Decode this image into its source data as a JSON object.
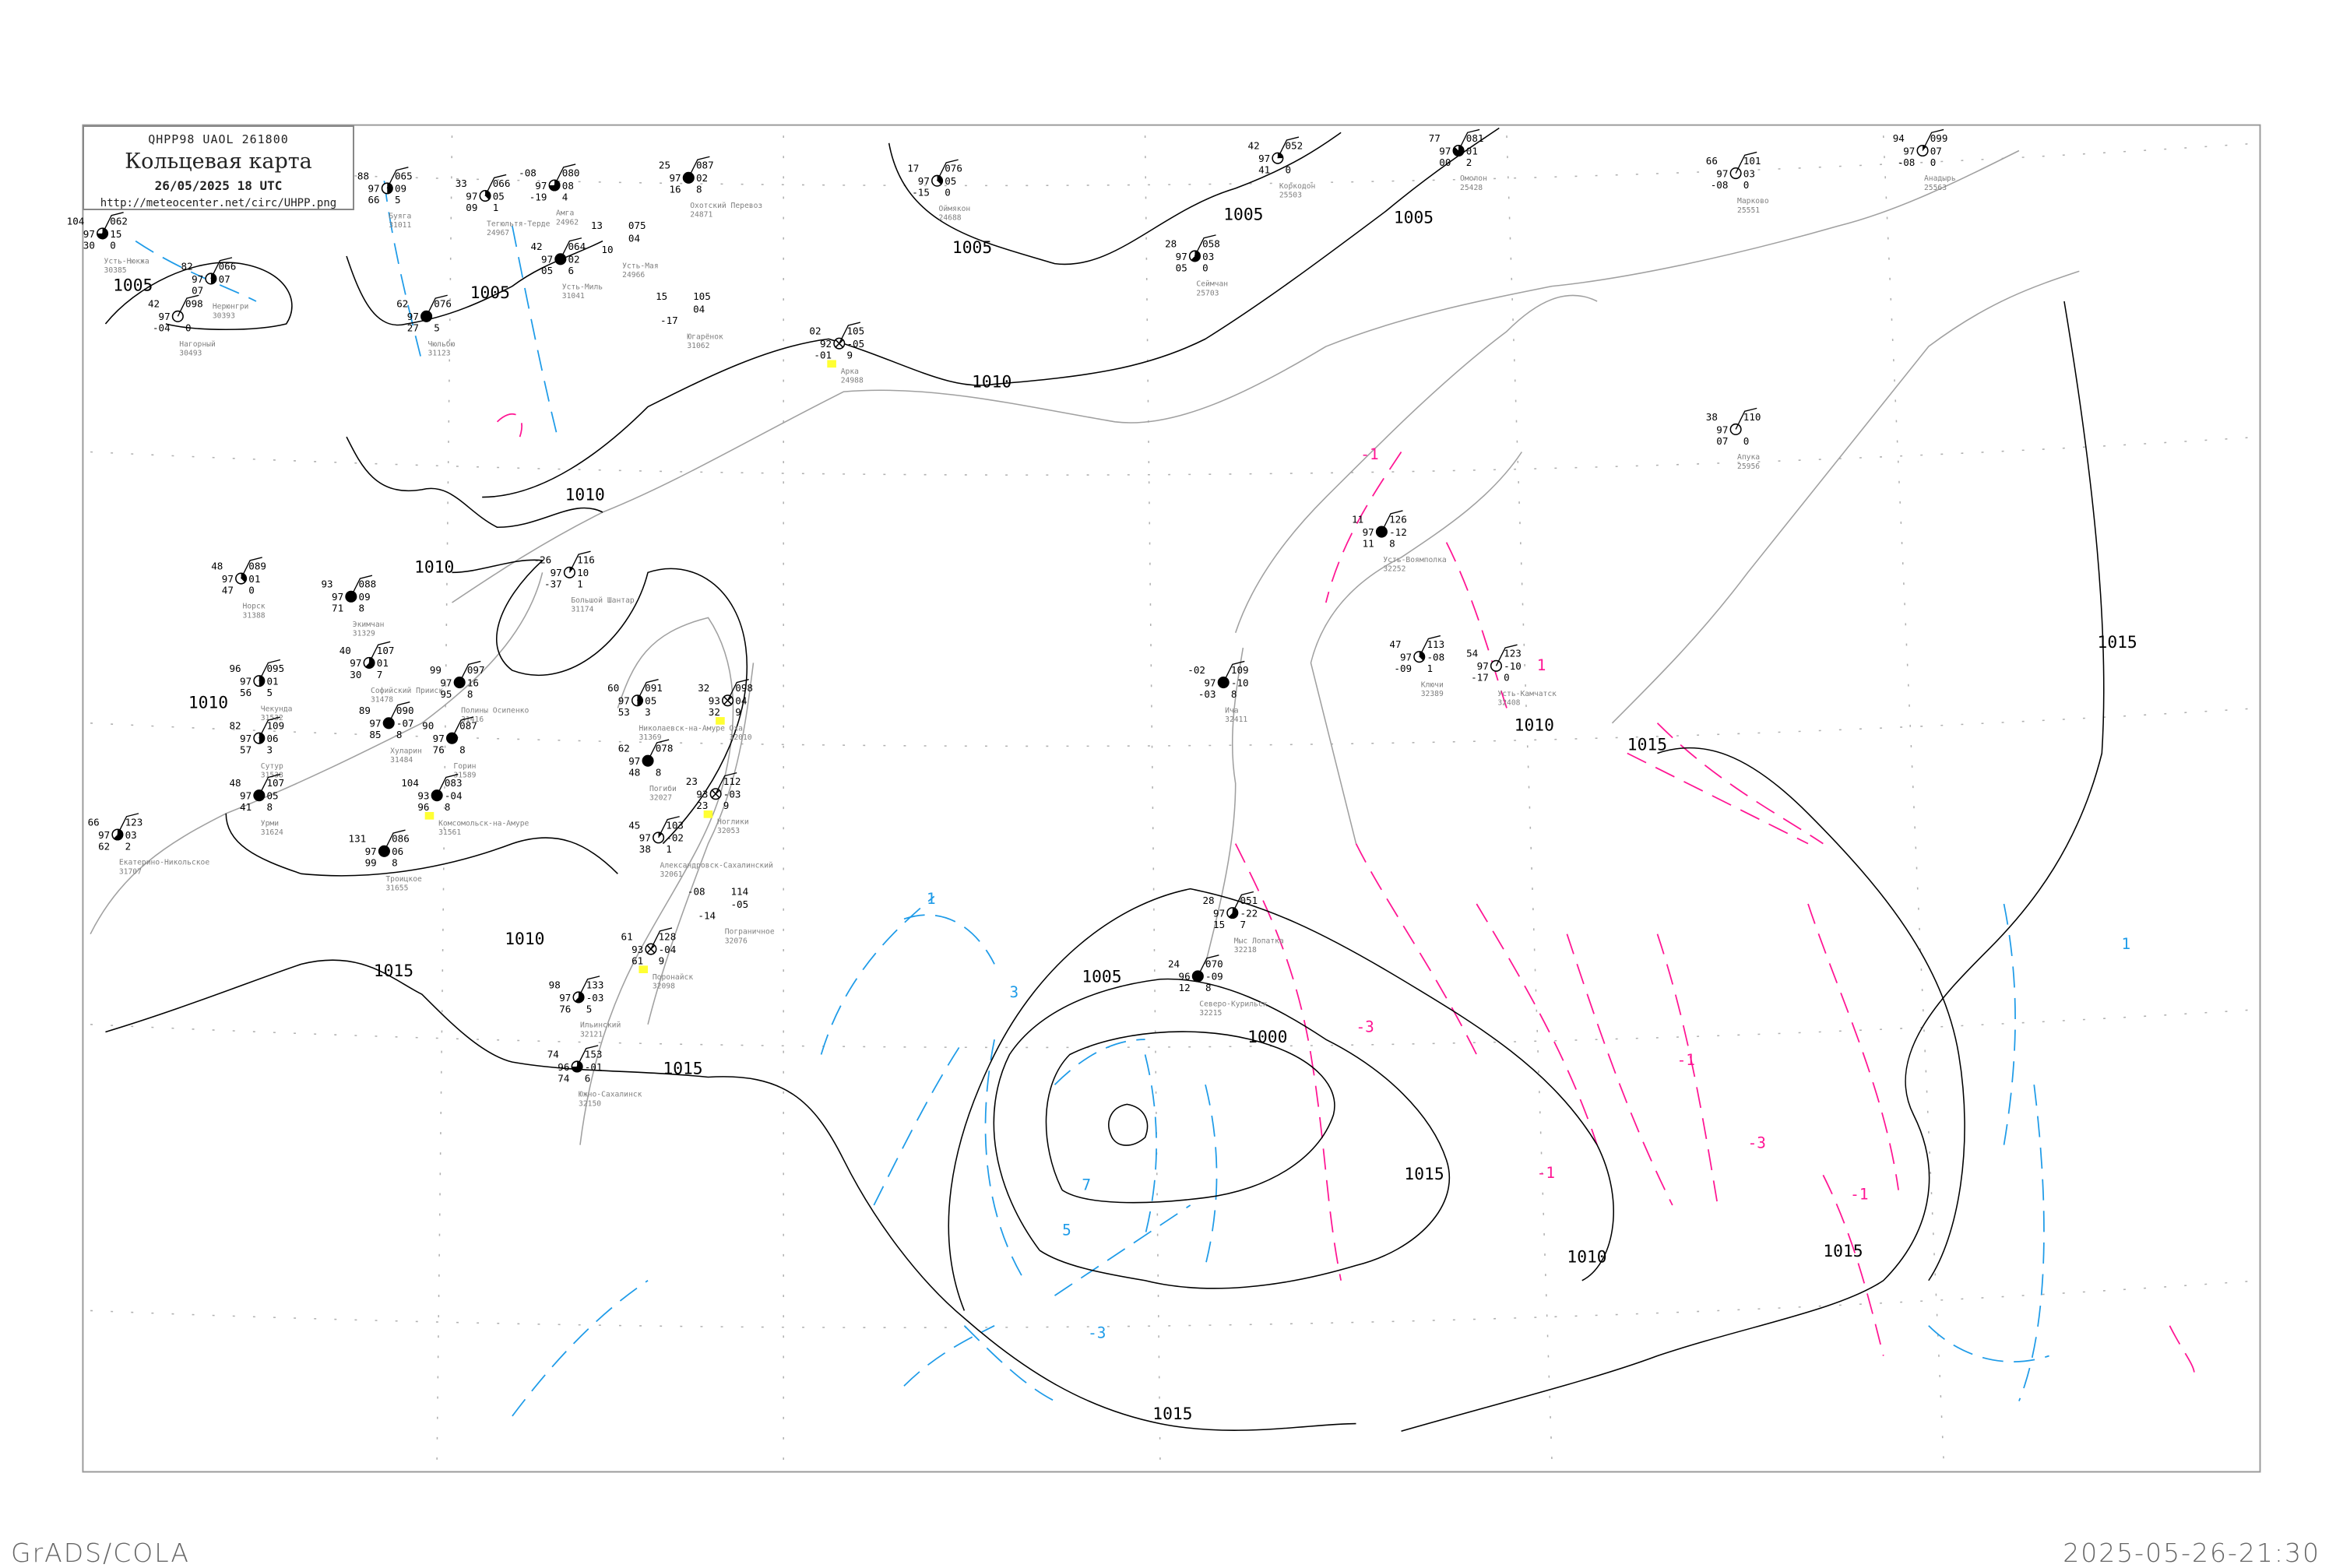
{
  "header": {
    "code": "QHPP98  UAOL  261800",
    "title": "Кольцевая карта",
    "date": "26/05/2025 18 UTC",
    "url": "http://meteocenter.net/circ/UHPP.png"
  },
  "footer": {
    "left": "GrADS/COLA",
    "right": "2025-05-26-21:30"
  },
  "colors": {
    "isobar": "#000000",
    "coast": "#a0a0a0",
    "rise": "#ff1493",
    "fall": "#1e9be8",
    "station_name": "#808080",
    "fog_marker": "#ffff33",
    "rain_marker": "#22c040",
    "grid": "#b0b0b0"
  },
  "isobar_labels": [
    "1005",
    "1005",
    "1005",
    "1005",
    "1005",
    "1010",
    "1010",
    "1010",
    "1010",
    "1010",
    "1010",
    "1015",
    "1015",
    "1015",
    "1015",
    "1015",
    "1000",
    "1005",
    "1010",
    "1015",
    "1015"
  ],
  "tendency_labels": [
    "1",
    "3",
    "5",
    "7",
    "-3",
    "-1",
    "-3",
    "-1",
    "-1",
    "-3",
    "-1",
    "1",
    "1"
  ],
  "stations": [
    {
      "name": "Усть-Нюкжа",
      "id": "30385",
      "tl": "104",
      "ml": "97",
      "bl": "30",
      "tr": "062",
      "mr": "15",
      "br": "0",
      "cloud": 6
    },
    {
      "name": "Нагорный",
      "id": "30493",
      "tl": "42",
      "ml": "97",
      "bl": "-04",
      "tr": "098",
      "mr": "",
      "br": "0",
      "cloud": 0
    },
    {
      "name": "Нерюнгри",
      "id": "30393",
      "tl": "82",
      "ml": "97",
      "bl": "07",
      "tr": "066",
      "mr": "07",
      "br": "",
      "cloud": 4
    },
    {
      "name": "Буяга",
      "id": "31011",
      "tl": "88",
      "ml": "97",
      "bl": "66",
      "tr": "065",
      "mr": "09",
      "br": "5",
      "cloud": 4
    },
    {
      "name": "Тегюльтя-Терде",
      "id": "24967",
      "tl": "33",
      "ml": "97",
      "bl": "09",
      "tr": "066",
      "mr": "05",
      "br": "1",
      "cloud": 3
    },
    {
      "name": "Амга",
      "id": "24962",
      "tl": "-08",
      "ml": "97",
      "bl": "-19",
      "tr": "080",
      "mr": "08",
      "br": "4",
      "cloud": 6
    },
    {
      "name": "Усть-Миль",
      "id": "31041",
      "tl": "42",
      "ml": "97",
      "bl": "05",
      "tr": "064",
      "mr": "02",
      "br": "6",
      "cloud": 8
    },
    {
      "name": "Усть-Мая",
      "id": "24966",
      "tl": "13",
      "ml": "",
      "bl": "10",
      "tr": "075",
      "mr": "04",
      "br": "",
      "cloud": -1
    },
    {
      "name": "Охотский Перевоз",
      "id": "24871",
      "tl": "25",
      "ml": "97",
      "bl": "16",
      "tr": "087",
      "mr": "02",
      "br": "8",
      "cloud": 8
    },
    {
      "name": "Оймякон",
      "id": "24688",
      "tl": "17",
      "ml": "97",
      "bl": "-15",
      "tr": "076",
      "mr": "05",
      "br": "0",
      "cloud": 3
    },
    {
      "name": "Югарёнок",
      "id": "31062",
      "tl": "15",
      "ml": "",
      "bl": "-17",
      "tr": "105",
      "mr": "04",
      "br": "",
      "cloud": -1
    },
    {
      "name": "Чюльбю",
      "id": "31123",
      "tl": "62",
      "ml": "97",
      "bl": "27",
      "tr": "076",
      "mr": "",
      "br": "5",
      "cloud": 8
    },
    {
      "name": "Сеймчан",
      "id": "25703",
      "tl": "28",
      "ml": "97",
      "bl": "05",
      "tr": "058",
      "mr": "03",
      "br": "0",
      "cloud": 5
    },
    {
      "name": "Коркодон",
      "id": "25503",
      "tl": "42",
      "ml": "97",
      "bl": "41",
      "tr": "052",
      "mr": "",
      "br": "0",
      "cloud": 2
    },
    {
      "name": "Омолон",
      "id": "25428",
      "tl": "77",
      "ml": "97",
      "bl": "00",
      "tr": "081",
      "mr": "01",
      "br": "2",
      "cloud": 7
    },
    {
      "name": "Марково",
      "id": "25551",
      "tl": "66",
      "ml": "97",
      "bl": "-08",
      "tr": "101",
      "mr": "03",
      "br": "0",
      "cloud": 0
    },
    {
      "name": "Анадырь",
      "id": "25563",
      "tl": "94",
      "ml": "97",
      "bl": "-08",
      "tr": "099",
      "mr": "07",
      "br": "0",
      "cloud": 1
    },
    {
      "name": "Арка",
      "id": "24988",
      "tl": "02",
      "ml": "92",
      "bl": "-01",
      "tr": "105",
      "mr": "-05",
      "br": "9",
      "cloud": 9
    },
    {
      "name": "Апука",
      "id": "25956",
      "tl": "38",
      "ml": "97",
      "bl": "07",
      "tr": "110",
      "mr": "",
      "br": "0",
      "cloud": 0
    },
    {
      "name": "Усть-Воямполка",
      "id": "32252",
      "tl": "11",
      "ml": "97",
      "bl": "11",
      "tr": "126",
      "mr": "-12",
      "br": "8",
      "cloud": 8
    },
    {
      "name": "Ключи",
      "id": "32389",
      "tl": "47",
      "ml": "97",
      "bl": "-09",
      "tr": "113",
      "mr": "-08",
      "br": "1",
      "cloud": 3
    },
    {
      "name": "Усть-Камчатск",
      "id": "32408",
      "tl": "54",
      "ml": "97",
      "bl": "-17",
      "tr": "123",
      "mr": "-10",
      "br": "0",
      "cloud": 0
    },
    {
      "name": "Ича",
      "id": "32411",
      "tl": "-02",
      "ml": "97",
      "bl": "-03",
      "tr": "109",
      "mr": "-10",
      "br": "8",
      "cloud": 8
    },
    {
      "name": "Норск",
      "id": "31388",
      "tl": "48",
      "ml": "97",
      "bl": "47",
      "tr": "089",
      "mr": "01",
      "br": "0",
      "cloud": 3
    },
    {
      "name": "Экимчан",
      "id": "31329",
      "tl": "93",
      "ml": "97",
      "bl": "71",
      "tr": "088",
      "mr": "09",
      "br": "8",
      "cloud": 8
    },
    {
      "name": "Софийский Прииск",
      "id": "31478",
      "tl": "40",
      "ml": "97",
      "bl": "30",
      "tr": "107",
      "mr": "01",
      "br": "7",
      "cloud": 5
    },
    {
      "name": "Полины Осипенко",
      "id": "31416",
      "tl": "99",
      "ml": "97",
      "bl": "95",
      "tr": "097",
      "mr": "16",
      "br": "8",
      "cloud": 8
    },
    {
      "name": "Хуларин",
      "id": "31484",
      "tl": "89",
      "ml": "97",
      "bl": "85",
      "tr": "090",
      "mr": "-07",
      "br": "8",
      "cloud": 8
    },
    {
      "name": "Горин",
      "id": "31589",
      "tl": "90",
      "ml": "97",
      "bl": "76",
      "tr": "087",
      "mr": "",
      "br": "8",
      "cloud": 8
    },
    {
      "name": "Комсомольск-на-Амуре",
      "id": "31561",
      "tl": "104",
      "ml": "93",
      "bl": "96",
      "tr": "083",
      "mr": "-04",
      "br": "8",
      "cloud": 8
    },
    {
      "name": "Чекунда",
      "id": "31532",
      "tl": "96",
      "ml": "97",
      "bl": "56",
      "tr": "095",
      "mr": "01",
      "br": "5",
      "cloud": 4
    },
    {
      "name": "Сутур",
      "id": "31538",
      "tl": "82",
      "ml": "97",
      "bl": "57",
      "tr": "109",
      "mr": "06",
      "br": "3",
      "cloud": 4
    },
    {
      "name": "Урми",
      "id": "31624",
      "tl": "48",
      "ml": "97",
      "bl": "41",
      "tr": "107",
      "mr": "05",
      "br": "8",
      "cloud": 8
    },
    {
      "name": "Екатерино-Никольское",
      "id": "31707",
      "tl": "66",
      "ml": "97",
      "bl": "62",
      "tr": "123",
      "mr": "03",
      "br": "2",
      "cloud": 5
    },
    {
      "name": "Троицкое",
      "id": "31655",
      "tl": "131",
      "ml": "97",
      "bl": "99",
      "tr": "086",
      "mr": "06",
      "br": "8",
      "cloud": 8
    },
    {
      "name": "Большой Шантар",
      "id": "31174",
      "tl": "-26",
      "ml": "97",
      "bl": "-37",
      "tr": "116",
      "mr": "10",
      "br": "1",
      "cloud": 1
    },
    {
      "name": "Николаевск-на-Амуре",
      "id": "31369",
      "tl": "60",
      "ml": "97",
      "bl": "53",
      "tr": "091",
      "mr": "05",
      "br": "3",
      "cloud": 4
    },
    {
      "name": "Оха",
      "id": "32010",
      "tl": "32",
      "ml": "93",
      "bl": "32",
      "tr": "098",
      "mr": "04",
      "br": "9",
      "cloud": 9
    },
    {
      "name": "Погиби",
      "id": "32027",
      "tl": "62",
      "ml": "97",
      "bl": "48",
      "tr": "078",
      "mr": "",
      "br": "8",
      "cloud": 8
    },
    {
      "name": "Ноглики",
      "id": "32053",
      "tl": "23",
      "ml": "93",
      "bl": "23",
      "tr": "112",
      "mr": "-03",
      "br": "9",
      "cloud": 9
    },
    {
      "name": "Александровск-Сахалинский",
      "id": "32061",
      "tl": "45",
      "ml": "97",
      "bl": "38",
      "tr": "103",
      "mr": "-02",
      "br": "1",
      "cloud": 1
    },
    {
      "name": "Пограничное",
      "id": "32076",
      "tl": "-08",
      "ml": "",
      "bl": "-14",
      "tr": "114",
      "mr": "-05",
      "br": "",
      "cloud": -1
    },
    {
      "name": "Поронайск",
      "id": "32098",
      "tl": "61",
      "ml": "93",
      "bl": "61",
      "tr": "128",
      "mr": "-04",
      "br": "9",
      "cloud": 9
    },
    {
      "name": "Ильинский",
      "id": "32121",
      "tl": "98",
      "ml": "97",
      "bl": "76",
      "tr": "133",
      "mr": "-03",
      "br": "5",
      "cloud": 5
    },
    {
      "name": "Южно-Сахалинск",
      "id": "32150",
      "tl": "74",
      "ml": "96",
      "bl": "74",
      "tr": "153",
      "mr": "-01",
      "br": "6",
      "cloud": 6
    },
    {
      "name": "Северо-Курильск",
      "id": "32215",
      "tl": "24",
      "ml": "96",
      "bl": "12",
      "tr": "070",
      "mr": "-09",
      "br": "8",
      "cloud": 8
    },
    {
      "name": "Мыс Лопатка",
      "id": "32218",
      "tl": "28",
      "ml": "97",
      "bl": "15",
      "tr": "051",
      "mr": "-22",
      "br": "7",
      "cloud": 5
    }
  ]
}
